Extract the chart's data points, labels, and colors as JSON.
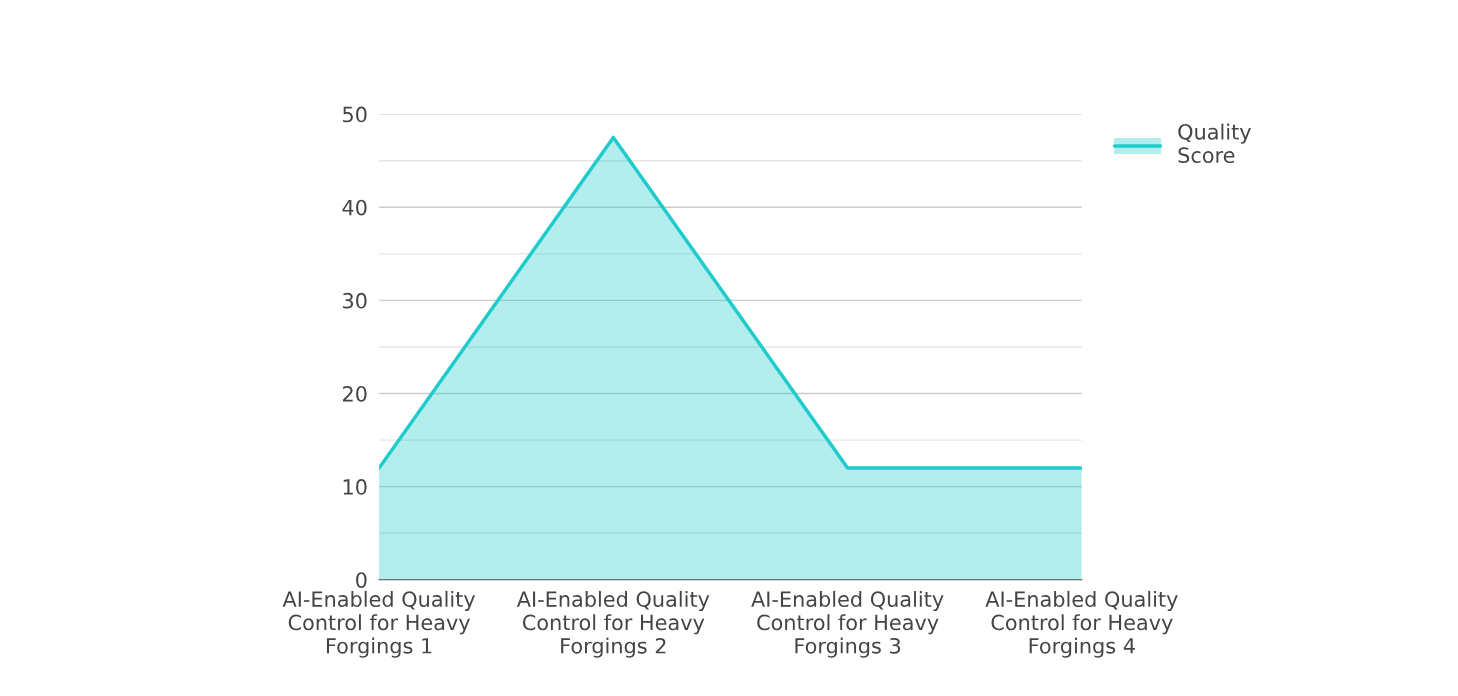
{
  "chart_data": {
    "type": "area",
    "categories": [
      "AI-Enabled Quality\nControl for Heavy\nForgings 1",
      "AI-Enabled Quality\nControl for Heavy\nForgings 2",
      "AI-Enabled Quality\nControl for Heavy\nForgings 3",
      "AI-Enabled Quality\nControl for Heavy\nForgings 4"
    ],
    "series": [
      {
        "name": "Quality\nScore",
        "color": "#1fcbcb",
        "values": [
          12,
          47.5,
          12,
          12
        ]
      }
    ],
    "ylim": [
      0,
      50
    ],
    "yticks": [
      0,
      {
        "value": 5,
        "label": null
      },
      10,
      {
        "value": 15,
        "label": null
      },
      20,
      {
        "value": 25,
        "label": null
      },
      30,
      {
        "value": 35,
        "label": null
      },
      40,
      {
        "value": 45,
        "label": null
      },
      50
    ],
    "grid": "y",
    "legend": "top right"
  }
}
